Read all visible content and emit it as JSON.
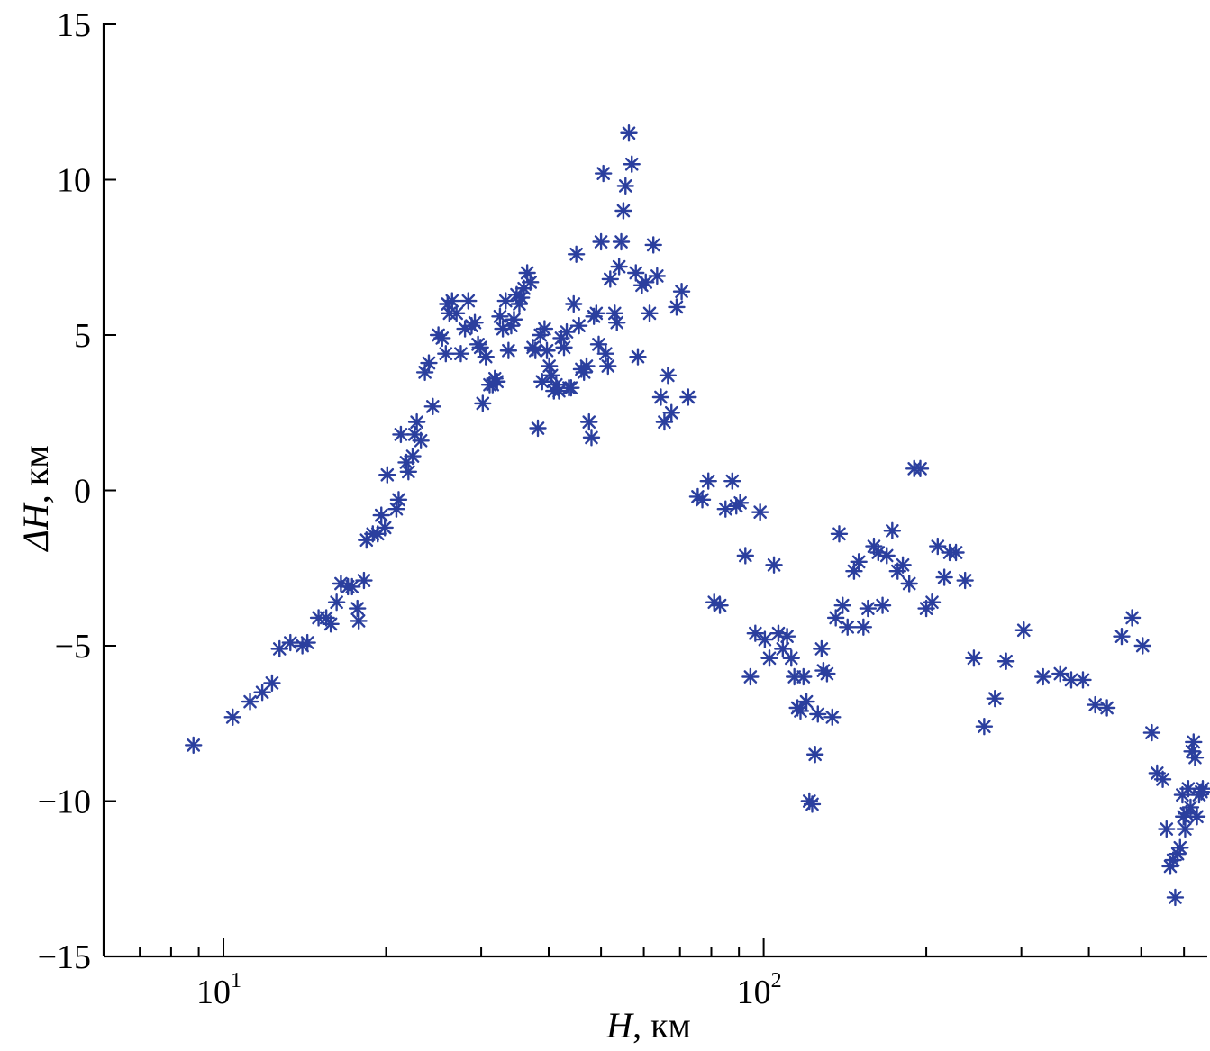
{
  "chart_data": {
    "type": "scatter",
    "xscale": "log",
    "xlim": [
      6,
      650
    ],
    "ylim": [
      -15,
      15
    ],
    "xlabel": {
      "var": "H",
      "unit": ", км"
    },
    "ylabel": {
      "var": "ΔH",
      "unit": ", км"
    },
    "x_tick_labels": [
      {
        "base": "10",
        "exp": "1",
        "value": 10
      },
      {
        "base": "10",
        "exp": "2",
        "value": 100
      }
    ],
    "y_ticks": [
      {
        "value": 15,
        "label": "15"
      },
      {
        "value": 10,
        "label": "10"
      },
      {
        "value": 5,
        "label": "5"
      },
      {
        "value": 0,
        "label": "0"
      },
      {
        "value": -5,
        "label": "−5"
      },
      {
        "value": -10,
        "label": "−10"
      },
      {
        "value": -15,
        "label": "−15"
      }
    ],
    "x_minor_ticks": [
      6,
      7,
      8,
      9,
      20,
      30,
      40,
      50,
      60,
      70,
      80,
      90,
      200,
      300,
      400,
      500,
      600
    ],
    "marker": "asterisk",
    "color": "#2b3f9e",
    "grid": false,
    "points": [
      [
        8.8,
        -8.2
      ],
      [
        10.4,
        -7.3
      ],
      [
        11.2,
        -6.8
      ],
      [
        11.8,
        -6.5
      ],
      [
        12.3,
        -6.2
      ],
      [
        12.7,
        -5.1
      ],
      [
        13.3,
        -4.9
      ],
      [
        14,
        -5
      ],
      [
        14.3,
        -4.9
      ],
      [
        15,
        -4.1
      ],
      [
        15.5,
        -4.1
      ],
      [
        15.8,
        -4.3
      ],
      [
        16.2,
        -3.6
      ],
      [
        16.5,
        -3.0
      ],
      [
        17,
        -3.1
      ],
      [
        17.3,
        -3.1
      ],
      [
        17.7,
        -3.8
      ],
      [
        17.8,
        -4.2
      ],
      [
        18.2,
        -2.9
      ],
      [
        18.4,
        -1.6
      ],
      [
        18.9,
        -1.4
      ],
      [
        19.3,
        -1.4
      ],
      [
        19.6,
        -0.8
      ],
      [
        19.9,
        -1.2
      ],
      [
        20.1,
        0.5
      ],
      [
        20.9,
        -0.6
      ],
      [
        21.1,
        -0.3
      ],
      [
        21.3,
        1.8
      ],
      [
        21.8,
        0.9
      ],
      [
        22,
        0.6
      ],
      [
        22.4,
        1.1
      ],
      [
        22.6,
        1.8
      ],
      [
        22.8,
        2.2
      ],
      [
        23.2,
        1.6
      ],
      [
        23.6,
        3.8
      ],
      [
        24,
        4.1
      ],
      [
        24.4,
        2.7
      ],
      [
        25,
        5.0
      ],
      [
        25.4,
        4.9
      ],
      [
        25.8,
        4.4
      ],
      [
        26,
        6.0
      ],
      [
        26.2,
        5.7
      ],
      [
        26.5,
        6.1
      ],
      [
        27,
        5.7
      ],
      [
        27.5,
        4.4
      ],
      [
        28,
        5.2
      ],
      [
        28.4,
        6.1
      ],
      [
        28.8,
        5.3
      ],
      [
        29.2,
        5.4
      ],
      [
        29.6,
        4.7
      ],
      [
        29.9,
        4.6
      ],
      [
        30.2,
        2.8
      ],
      [
        30.6,
        4.3
      ],
      [
        31.1,
        3.4
      ],
      [
        31.5,
        3.4
      ],
      [
        31.8,
        3.6
      ],
      [
        32.1,
        3.5
      ],
      [
        32.5,
        5.6
      ],
      [
        32.9,
        5.2
      ],
      [
        33.3,
        6.1
      ],
      [
        33.7,
        4.5
      ],
      [
        34.1,
        5.3
      ],
      [
        34.5,
        5.5
      ],
      [
        34.9,
        6.3
      ],
      [
        35.3,
        6.0
      ],
      [
        35.6,
        6.2
      ],
      [
        36,
        6.5
      ],
      [
        36.5,
        7.0
      ],
      [
        37,
        6.7
      ],
      [
        37.4,
        4.6
      ],
      [
        37.8,
        4.5
      ],
      [
        38.2,
        2.0
      ],
      [
        38.6,
        5.0
      ],
      [
        38.9,
        3.5
      ],
      [
        39.3,
        5.2
      ],
      [
        39.7,
        4.5
      ],
      [
        40.1,
        4.0
      ],
      [
        40.5,
        3.7
      ],
      [
        40.9,
        3.2
      ],
      [
        41.3,
        3.4
      ],
      [
        41.8,
        3.2
      ],
      [
        42.2,
        4.9
      ],
      [
        42.7,
        4.6
      ],
      [
        43.2,
        5.1
      ],
      [
        43.6,
        3.3
      ],
      [
        44,
        3.3
      ],
      [
        44.5,
        6.0
      ],
      [
        45,
        7.6
      ],
      [
        45.5,
        5.3
      ],
      [
        46,
        3.9
      ],
      [
        46.5,
        3.8
      ],
      [
        47,
        4.0
      ],
      [
        47.5,
        2.2
      ],
      [
        48,
        1.7
      ],
      [
        48.5,
        5.6
      ],
      [
        49,
        5.7
      ],
      [
        49.5,
        4.7
      ],
      [
        50,
        8.0
      ],
      [
        50.5,
        10.2
      ],
      [
        51,
        4.4
      ],
      [
        51.5,
        4.0
      ],
      [
        52,
        6.8
      ],
      [
        53,
        5.7
      ],
      [
        53.5,
        5.4
      ],
      [
        54,
        7.2
      ],
      [
        54.5,
        8.0
      ],
      [
        55,
        9.0
      ],
      [
        55.5,
        9.8
      ],
      [
        56.3,
        11.5
      ],
      [
        57,
        10.5
      ],
      [
        58,
        7.0
      ],
      [
        58.5,
        4.3
      ],
      [
        59.5,
        6.6
      ],
      [
        60.5,
        6.7
      ],
      [
        61.5,
        5.7
      ],
      [
        62.5,
        7.9
      ],
      [
        63.5,
        6.9
      ],
      [
        64.5,
        3.0
      ],
      [
        65.5,
        2.2
      ],
      [
        66.5,
        3.7
      ],
      [
        67.5,
        2.5
      ],
      [
        69,
        5.9
      ],
      [
        70.5,
        6.4
      ],
      [
        72.5,
        3.0
      ],
      [
        75.5,
        -0.2
      ],
      [
        77,
        -0.3
      ],
      [
        79,
        0.3
      ],
      [
        81,
        -3.6
      ],
      [
        83,
        -3.7
      ],
      [
        85,
        -0.6
      ],
      [
        87.5,
        0.3
      ],
      [
        89,
        -0.5
      ],
      [
        90.5,
        -0.4
      ],
      [
        92.5,
        -2.1
      ],
      [
        94.5,
        -6.0
      ],
      [
        96.5,
        -4.6
      ],
      [
        98.5,
        -0.7
      ],
      [
        100.5,
        -4.8
      ],
      [
        102.5,
        -5.4
      ],
      [
        104.5,
        -2.4
      ],
      [
        106.5,
        -4.6
      ],
      [
        108.5,
        -5.1
      ],
      [
        110.5,
        -4.7
      ],
      [
        112.5,
        -5.4
      ],
      [
        114,
        -6.0
      ],
      [
        115.5,
        -7.0
      ],
      [
        117,
        -7.1
      ],
      [
        118.5,
        -6.0
      ],
      [
        120,
        -6.8
      ],
      [
        121.5,
        -10.0
      ],
      [
        123,
        -10.1
      ],
      [
        124.5,
        -8.5
      ],
      [
        126,
        -7.2
      ],
      [
        128,
        -5.1
      ],
      [
        129,
        -5.8
      ],
      [
        131,
        -5.9
      ],
      [
        134,
        -7.3
      ],
      [
        136,
        -4.1
      ],
      [
        138,
        -1.4
      ],
      [
        140,
        -3.7
      ],
      [
        143,
        -4.4
      ],
      [
        147,
        -2.6
      ],
      [
        150,
        -2.3
      ],
      [
        153,
        -4.4
      ],
      [
        156,
        -3.8
      ],
      [
        160,
        -1.8
      ],
      [
        163,
        -2.0
      ],
      [
        166,
        -3.7
      ],
      [
        169,
        -2.1
      ],
      [
        173,
        -1.3
      ],
      [
        177,
        -2.6
      ],
      [
        181,
        -2.4
      ],
      [
        186,
        -3.0
      ],
      [
        190,
        0.7
      ],
      [
        195,
        0.7
      ],
      [
        200,
        -3.8
      ],
      [
        205,
        -3.6
      ],
      [
        210,
        -1.8
      ],
      [
        216,
        -2.8
      ],
      [
        221,
        -2.0
      ],
      [
        227,
        -2.0
      ],
      [
        236,
        -2.9
      ],
      [
        245,
        -5.4
      ],
      [
        256,
        -7.6
      ],
      [
        268,
        -6.7
      ],
      [
        281,
        -5.5
      ],
      [
        303,
        -4.5
      ],
      [
        329,
        -6.0
      ],
      [
        354,
        -5.9
      ],
      [
        371,
        -6.1
      ],
      [
        390,
        -6.1
      ],
      [
        411,
        -6.9
      ],
      [
        432,
        -7.0
      ],
      [
        460,
        -4.7
      ],
      [
        481,
        -4.1
      ],
      [
        503,
        -5.0
      ],
      [
        523,
        -7.8
      ],
      [
        535,
        -9.1
      ],
      [
        548,
        -9.3
      ],
      [
        557,
        -10.9
      ],
      [
        566,
        -12.1
      ],
      [
        573,
        -11.9
      ],
      [
        578,
        -13.1
      ],
      [
        584,
        -11.7
      ],
      [
        590,
        -11.5
      ],
      [
        596,
        -9.8
      ],
      [
        599,
        -10.5
      ],
      [
        603,
        -10.9
      ],
      [
        606,
        -10.4
      ],
      [
        611,
        -9.6
      ],
      [
        617,
        -10.2
      ],
      [
        621,
        -8.4
      ],
      [
        625,
        -8.1
      ],
      [
        629,
        -8.6
      ],
      [
        634,
        -10.5
      ],
      [
        640,
        -9.8
      ],
      [
        646,
        -9.7
      ],
      [
        650,
        -9.6
      ]
    ]
  }
}
